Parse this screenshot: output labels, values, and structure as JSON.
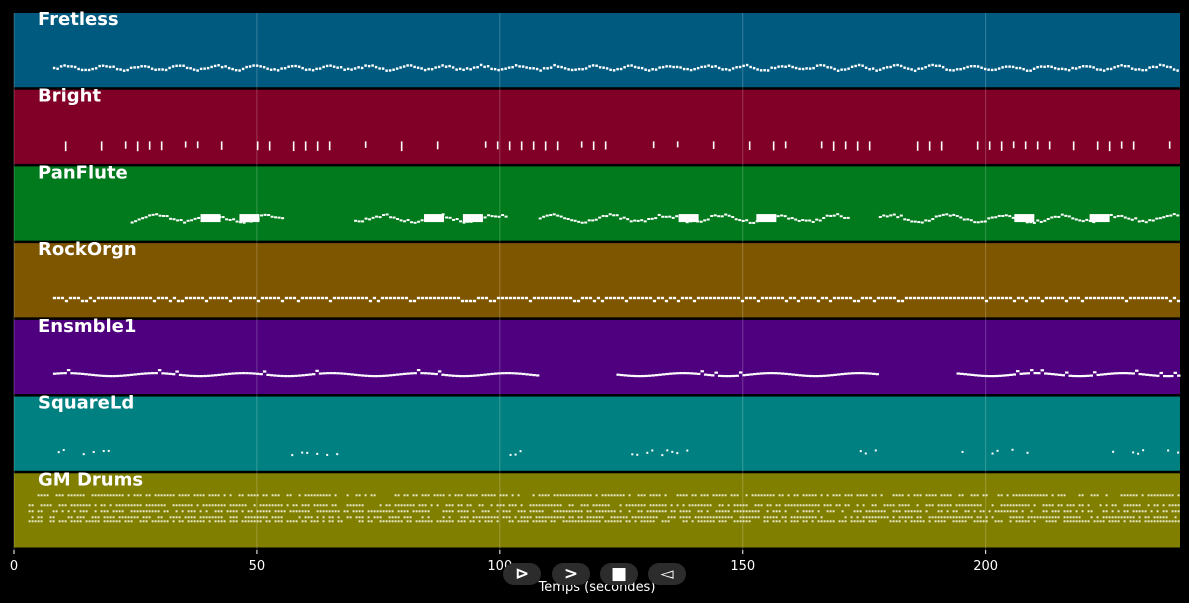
{
  "chart_data": {
    "type": "pianoroll",
    "xlabel": "Temps (secondes)",
    "xlim": [
      0,
      240
    ],
    "xticks": [
      0,
      50,
      100,
      150,
      200
    ],
    "grid": true,
    "tracks": [
      {
        "name": "Fretless",
        "color": "#005a80",
        "segments": [
          [
            8,
            240
          ]
        ],
        "pattern": "wave-small"
      },
      {
        "name": "Bright",
        "color": "#800027",
        "segments": [
          [
            8,
            240
          ]
        ],
        "pattern": "chords"
      },
      {
        "name": "PanFlute",
        "color": "#007a1c",
        "segments": [
          [
            24,
            56
          ],
          [
            70,
            102
          ],
          [
            108,
            172
          ],
          [
            178,
            240
          ]
        ],
        "pattern": "melody"
      },
      {
        "name": "RockOrgn",
        "color": "#7f5600",
        "segments": [
          [
            8,
            240
          ]
        ],
        "pattern": "dense"
      },
      {
        "name": "Ensmble1",
        "color": "#4f007f",
        "segments": [
          [
            8,
            108
          ],
          [
            124,
            178
          ],
          [
            194,
            240
          ]
        ],
        "pattern": "line"
      },
      {
        "name": "SquareLd",
        "color": "#008080",
        "segments": [
          [
            9,
            23
          ],
          [
            55,
            69
          ],
          [
            102,
            108
          ],
          [
            125,
            139
          ],
          [
            171,
            178
          ],
          [
            194,
            209
          ],
          [
            225,
            240
          ]
        ],
        "pattern": "sparse"
      },
      {
        "name": "GM Drums",
        "color": "#807f00",
        "segments": [
          [
            3,
            240
          ]
        ],
        "pattern": "drums"
      }
    ]
  },
  "controls": {
    "play_label": "⊳",
    "next_label": ">",
    "stop_label": "■",
    "prev_label": "◅"
  }
}
